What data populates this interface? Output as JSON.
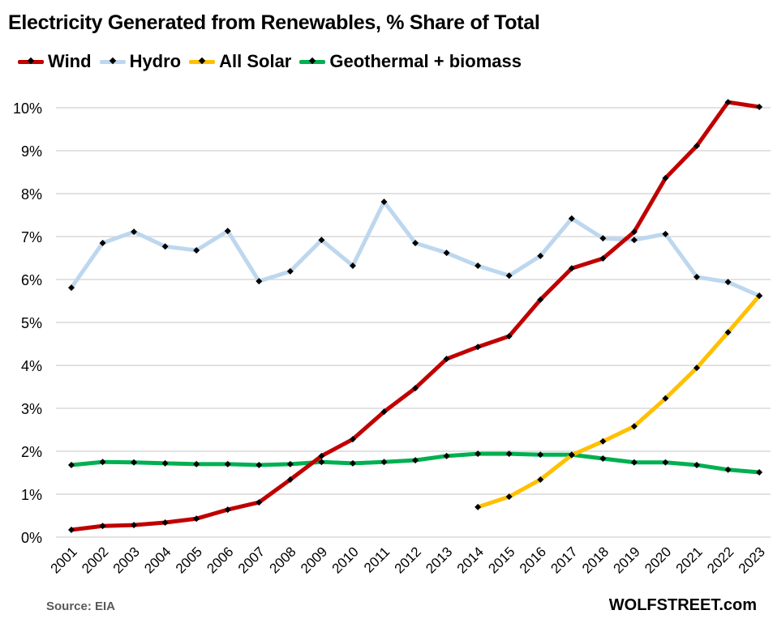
{
  "chart_data": {
    "type": "line",
    "title": "Electricity Generated from Renewables, % Share of Total",
    "xlabel": "",
    "ylabel": "",
    "ylim": [
      0,
      10
    ],
    "y_ticks": [
      "0%",
      "1%",
      "2%",
      "3%",
      "4%",
      "5%",
      "6%",
      "7%",
      "8%",
      "9%",
      "10%"
    ],
    "grid": true,
    "legend_position": "top-left",
    "categories": [
      "2001",
      "2002",
      "2003",
      "2004",
      "2005",
      "2006",
      "2007",
      "2008",
      "2009",
      "2010",
      "2011",
      "2012",
      "2013",
      "2014",
      "2015",
      "2016",
      "2017",
      "2018",
      "2019",
      "2020",
      "2021",
      "2022",
      "2023"
    ],
    "series": [
      {
        "name": "Wind",
        "color": "#C00000",
        "values": [
          0.17,
          0.26,
          0.28,
          0.34,
          0.43,
          0.64,
          0.81,
          1.34,
          1.89,
          2.28,
          2.92,
          3.47,
          4.15,
          4.43,
          4.68,
          5.53,
          6.26,
          6.49,
          7.11,
          8.36,
          9.11,
          10.13,
          10.02
        ]
      },
      {
        "name": "Hydro",
        "color": "#BDD7EE",
        "values": [
          5.81,
          6.85,
          7.11,
          6.77,
          6.68,
          7.13,
          5.96,
          6.19,
          6.92,
          6.32,
          7.81,
          6.85,
          6.62,
          6.32,
          6.09,
          6.55,
          7.42,
          6.96,
          6.92,
          7.06,
          6.06,
          5.94,
          5.62
        ]
      },
      {
        "name": "All Solar",
        "color": "#FFC000",
        "values": [
          null,
          null,
          null,
          null,
          null,
          null,
          null,
          null,
          null,
          null,
          null,
          null,
          null,
          0.7,
          0.94,
          1.34,
          1.91,
          2.23,
          2.58,
          3.23,
          3.94,
          4.77,
          5.62
        ]
      },
      {
        "name": "Geothermal + biomass",
        "color": "#00B050",
        "values": [
          1.68,
          1.75,
          1.74,
          1.72,
          1.7,
          1.7,
          1.68,
          1.7,
          1.75,
          1.72,
          1.75,
          1.79,
          1.89,
          1.94,
          1.94,
          1.92,
          1.92,
          1.83,
          1.74,
          1.74,
          1.68,
          1.57,
          1.51
        ]
      }
    ],
    "source": "Source: EIA",
    "watermark": "WOLFSTREET.com"
  }
}
